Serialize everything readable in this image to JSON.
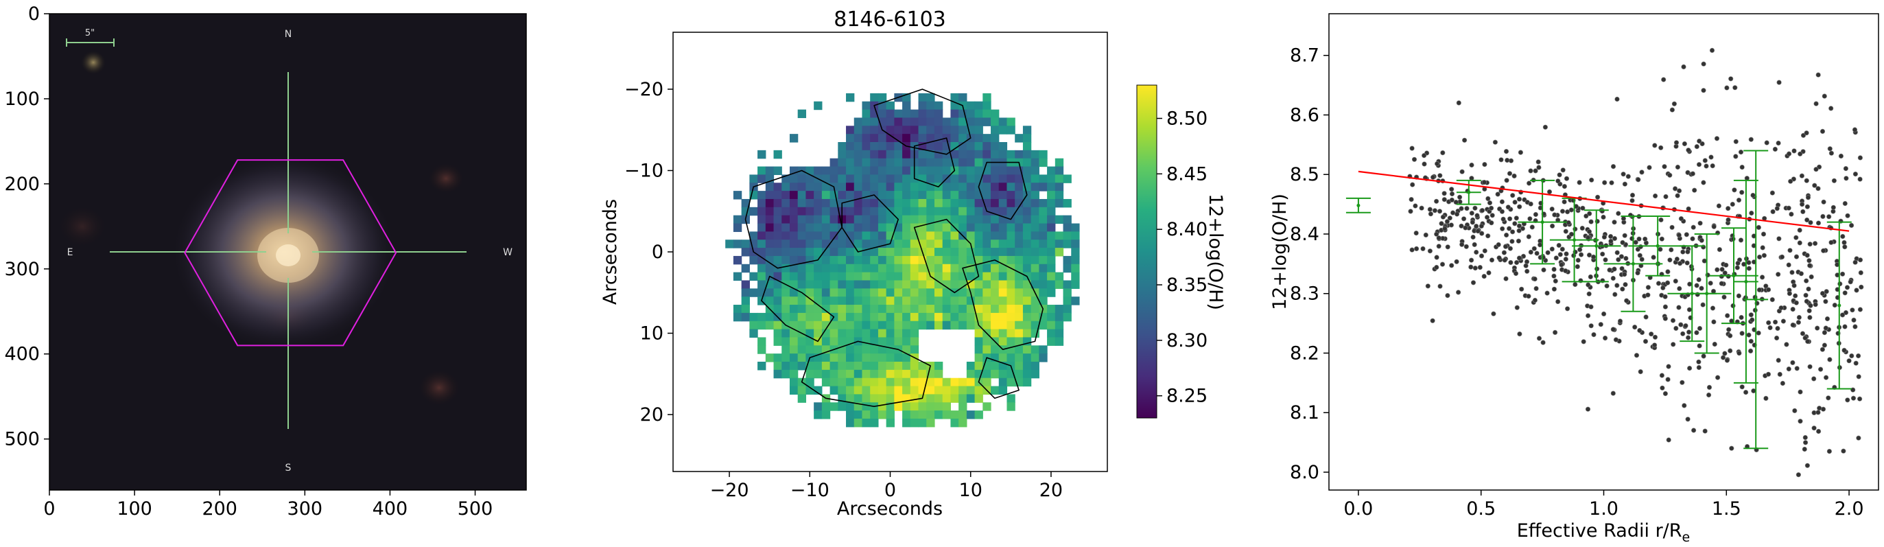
{
  "chart_data": [
    {
      "type": "image",
      "panel": "sdss-cutout",
      "title": "",
      "xlabel": "",
      "ylabel": "",
      "xlim": [
        0,
        560
      ],
      "ylim": [
        560,
        0
      ],
      "xticks": [
        "0",
        "100",
        "200",
        "300",
        "400",
        "500"
      ],
      "yticks": [
        "0",
        "100",
        "200",
        "300",
        "400",
        "500"
      ],
      "compass": {
        "north": "N",
        "south": "S",
        "east": "E",
        "west": "W"
      },
      "scalebar_label": "5\"",
      "ifu_hexagon": {
        "center": [
          283,
          281
        ],
        "x_extent": [
          159,
          407
        ],
        "y_extent": [
          172,
          390
        ],
        "color": "#e020e0"
      },
      "crosshair_color": "#8fd08f"
    },
    {
      "type": "heatmap",
      "panel": "metallicity-map",
      "title": "8146-6103",
      "xlabel": "Arcseconds",
      "ylabel": "Arcseconds",
      "xlim": [
        -27,
        27
      ],
      "ylim": [
        27,
        -27
      ],
      "xticks": [
        "−20",
        "−10",
        "0",
        "10",
        "20"
      ],
      "yticks": [
        "−20",
        "−10",
        "0",
        "10",
        "20"
      ],
      "colormap": "viridis",
      "colorbar": {
        "label": "12+log(O/H)",
        "range": [
          8.23,
          8.53
        ],
        "ticks": [
          "8.25",
          "8.30",
          "8.35",
          "8.40",
          "8.45",
          "8.50"
        ]
      },
      "contour_levels": [
        8.35,
        8.45,
        8.55
      ]
    },
    {
      "type": "scatter",
      "panel": "radial-gradient",
      "title": "",
      "xlabel": "Effective Radii r/R",
      "xlabel_sub": "e",
      "ylabel": "12+log(O/H)",
      "xlim": [
        -0.12,
        2.12
      ],
      "ylim": [
        7.97,
        8.77
      ],
      "xticks": [
        "0.0",
        "0.5",
        "1.0",
        "1.5",
        "2.0"
      ],
      "yticks": [
        "8.0",
        "8.1",
        "8.2",
        "8.3",
        "8.4",
        "8.5",
        "8.6",
        "8.7"
      ],
      "point_color": "#333333",
      "fit_line": {
        "x": [
          0.0,
          2.0
        ],
        "y": [
          8.505,
          8.405
        ],
        "color": "#ff0000"
      },
      "binned_means": {
        "color": "#1a9a1a",
        "x": [
          0.0,
          0.45,
          0.75,
          0.88,
          0.97,
          1.12,
          1.22,
          1.36,
          1.42,
          1.53,
          1.58,
          1.62,
          1.96
        ],
        "y": [
          8.448,
          8.47,
          8.42,
          8.39,
          8.38,
          8.35,
          8.38,
          8.3,
          8.3,
          8.33,
          8.32,
          8.29,
          8.28
        ],
        "yerr": [
          0.012,
          0.02,
          0.07,
          0.07,
          0.06,
          0.08,
          0.05,
          0.08,
          0.1,
          0.08,
          0.17,
          0.25,
          0.14
        ],
        "xerr": [
          0.0,
          0.05,
          0.1,
          0.1,
          0.1,
          0.12,
          0.12,
          0.1,
          0.1,
          0.1,
          0.05,
          0.05,
          0.0
        ]
      }
    }
  ]
}
